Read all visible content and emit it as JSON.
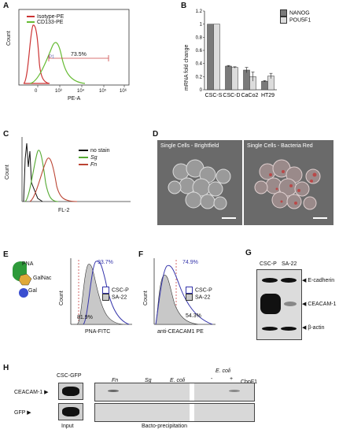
{
  "panel_labels": {
    "a": "A",
    "b": "B",
    "c": "C",
    "d": "D",
    "e": "E",
    "f": "F",
    "g": "G",
    "h": "H"
  },
  "panel_a": {
    "ylabel": "Count",
    "xlabel": "PE-A",
    "xticks": [
      "0",
      "10³",
      "10⁴",
      "10⁵",
      "10⁶"
    ],
    "legend": [
      {
        "name": "Isotype-PE",
        "color": "#cc3333"
      },
      {
        "name": "CD133-PE",
        "color": "#66bb33"
      }
    ],
    "gate_label": "P1",
    "percent": "73.5%"
  },
  "panel_b": {
    "chart_data": {
      "type": "bar",
      "ylabel": "mRNA fold change",
      "categories": [
        "CSC-S",
        "CSC-D",
        "CaCo2",
        "HT29"
      ],
      "yticks": [
        "0",
        "0.2",
        "0.4",
        "0.6",
        "0.8",
        "1",
        "1.2"
      ],
      "ylim": [
        0,
        1.2
      ],
      "series": [
        {
          "name": "NANOG",
          "color": "#7a7a7a",
          "values": [
            1.0,
            0.36,
            0.3,
            0.13
          ],
          "errors": [
            0,
            0.01,
            0.04,
            0.01
          ]
        },
        {
          "name": "POU5F1",
          "color": "#dcdcdc",
          "values": [
            1.0,
            0.34,
            0.2,
            0.21
          ],
          "errors": [
            0,
            0.01,
            0.07,
            0.04
          ]
        }
      ]
    }
  },
  "panel_c": {
    "ylabel": "Count",
    "xlabel": "FL-2",
    "legend": [
      {
        "name": "no stain",
        "color": "#111111"
      },
      {
        "name": "Sg",
        "color": "#55aa33"
      },
      {
        "name": "Fn",
        "color": "#bb4433"
      }
    ]
  },
  "panel_d": {
    "left_title": "Single Cells - Brightfield",
    "right_title": "Single Cells - Bacteria Red"
  },
  "panel_e": {
    "glycan": [
      "PNA",
      "GalNac",
      "Gal"
    ],
    "ylabel": "Count",
    "xlabel": "PNA-FITC",
    "pct_top": "93.7%",
    "pct_bottom": "81.9%",
    "legend": [
      "CSC-P",
      "SA-22"
    ]
  },
  "panel_f": {
    "ylabel": "Count",
    "xlabel": "anti-CEACAM1 PE",
    "pct_top": "74.9%",
    "pct_bottom": "54.3%",
    "legend": [
      "CSC-P",
      "SA-22"
    ]
  },
  "panel_g": {
    "lanes": [
      "CSC-P",
      "SA-22"
    ],
    "proteins": [
      "E-cadherin",
      "CEACAM-1",
      "β-actin"
    ]
  },
  "panel_h": {
    "row_labels": [
      "CEACAM-1",
      "GFP"
    ],
    "input_header": "CSC-GFP",
    "lanes": [
      "Fn",
      "Sg",
      "E. coli",
      "E. coli"
    ],
    "sign_minus": "-",
    "sign_plus": "+",
    "cbp": "CbpF1",
    "footer_input": "Input",
    "footer_bacto": "Bacto-precipitation"
  }
}
